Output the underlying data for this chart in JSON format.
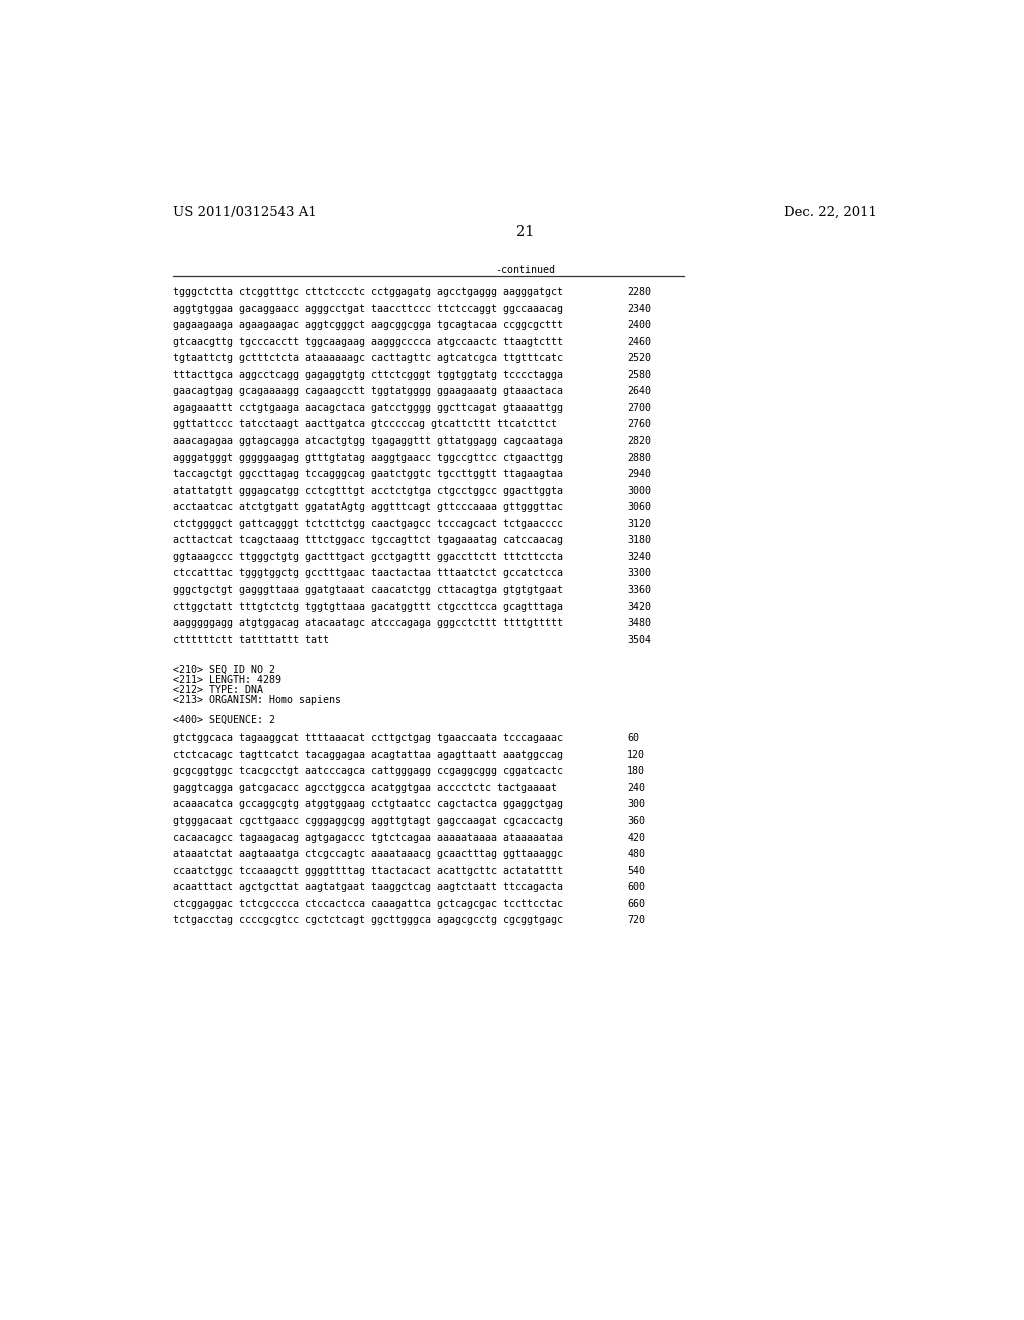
{
  "header_left": "US 2011/0312543 A1",
  "header_right": "Dec. 22, 2011",
  "page_number": "21",
  "continued_label": "-continued",
  "background_color": "#ffffff",
  "text_color": "#000000",
  "font_size_header": 9.5,
  "font_size_page": 10.5,
  "mono_fontsize": 7.2,
  "sequence_lines": [
    [
      "tgggctctta ctcggtttgc cttctccctc cctggagatg agcctgaggg aagggatgct",
      "2280"
    ],
    [
      "aggtgtggaa gacaggaacc agggcctgat taaccttccc ttctccaggt ggccaaacag",
      "2340"
    ],
    [
      "gagaagaaga agaagaagac aggtcgggct aagcggcgga tgcagtacaa ccggcgcttt",
      "2400"
    ],
    [
      "gtcaacgttg tgcccacctt tggcaagaag aagggcccca atgccaactc ttaagtcttt",
      "2460"
    ],
    [
      "tgtaattctg gctttctcta ataaaaaagc cacttagttc agtcatcgca ttgtttcatc",
      "2520"
    ],
    [
      "tttacttgca aggcctcagg gagaggtgtg cttctcgggt tggtggtatg tcccctagga",
      "2580"
    ],
    [
      "gaacagtgag gcagaaaagg cagaagcctt tggtatgggg ggaagaaatg gtaaactaca",
      "2640"
    ],
    [
      "agagaaattt cctgtgaaga aacagctaca gatcctgggg ggcttcagat gtaaaattgg",
      "2700"
    ],
    [
      "ggttattccc tatcctaagt aacttgatca gtcccccag gtcattcttt ttcatcttct",
      "2760"
    ],
    [
      "aaacagagaa ggtagcagga atcactgtgg tgagaggttt gttatggagg cagcaataga",
      "2820"
    ],
    [
      "agggatgggt gggggaagag gtttgtatag aaggtgaacc tggccgttcc ctgaacttgg",
      "2880"
    ],
    [
      "taccagctgt ggccttagag tccagggcag gaatctggtc tgccttggtt ttagaagtaa",
      "2940"
    ],
    [
      "atattatgtt gggagcatgg cctcgtttgt acctctgtga ctgcctggcc ggacttggta",
      "3000"
    ],
    [
      "acctaatcac atctgtgatt ggatatAgtg aggtttcagt gttcccaaaa gttgggttac",
      "3060"
    ],
    [
      "ctctggggct gattcagggt tctcttctgg caactgagcc tcccagcact tctgaacccc",
      "3120"
    ],
    [
      "acttactcat tcagctaaag tttctggacc tgccagttct tgagaaatag catccaacag",
      "3180"
    ],
    [
      "ggtaaagccc ttgggctgtg gactttgact gcctgagttt ggaccttctt tttcttccta",
      "3240"
    ],
    [
      "ctccatttac tgggtggctg gcctttgaac taactactaa tttaatctct gccatctcca",
      "3300"
    ],
    [
      "gggctgctgt gagggttaaa ggatgtaaat caacatctgg cttacagtga gtgtgtgaat",
      "3360"
    ],
    [
      "cttggctatt tttgtctctg tggtgttaaa gacatggttt ctgccttcca gcagtttaga",
      "3420"
    ],
    [
      "aagggggagg atgtggacag atacaatagc atcccagaga gggcctcttt ttttgttttt",
      "3480"
    ],
    [
      "cttttttctt tattttattt tatt",
      "3504"
    ]
  ],
  "metadata_lines": [
    "<210> SEQ ID NO 2",
    "<211> LENGTH: 4289",
    "<212> TYPE: DNA",
    "<213> ORGANISM: Homo sapiens"
  ],
  "sequence2_label": "<400> SEQUENCE: 2",
  "sequence2_lines": [
    [
      "gtctggcaca tagaaggcat ttttaaacat ccttgctgag tgaaccaata tcccagaaac",
      "60"
    ],
    [
      "ctctcacagc tagttcatct tacaggagaa acagtattaa agagttaatt aaatggccag",
      "120"
    ],
    [
      "gcgcggtggc tcacgcctgt aatcccagca cattgggagg ccgaggcggg cggatcactc",
      "180"
    ],
    [
      "gaggtcagga gatcgacacc agcctggcca acatggtgaa acccctctc tactgaaaat",
      "240"
    ],
    [
      "acaaacatca gccaggcgtg atggtggaag cctgtaatcc cagctactca ggaggctgag",
      "300"
    ],
    [
      "gtgggacaat cgcttgaacc cgggaggcgg aggttgtagt gagccaagat cgcaccactg",
      "360"
    ],
    [
      "cacaacagcc tagaagacag agtgagaccc tgtctcagaa aaaaataaaa ataaaaataa",
      "420"
    ],
    [
      "ataaatctat aagtaaatga ctcgccagtc aaaataaacg gcaactttag ggttaaaggc",
      "480"
    ],
    [
      "ccaatctggc tccaaagctt ggggttttag ttactacact acattgcttc actatatttt",
      "540"
    ],
    [
      "acaatttact agctgcttat aagtatgaat taaggctcag aagtctaatt ttccagacta",
      "600"
    ],
    [
      "ctcggaggac tctcgcccca ctccactcca caaagattca gctcagcgac tccttcctac",
      "660"
    ],
    [
      "tctgacctag ccccgcgtcc cgctctcagt ggcttgggca agagcgcctg cgcggtgagc",
      "720"
    ]
  ]
}
